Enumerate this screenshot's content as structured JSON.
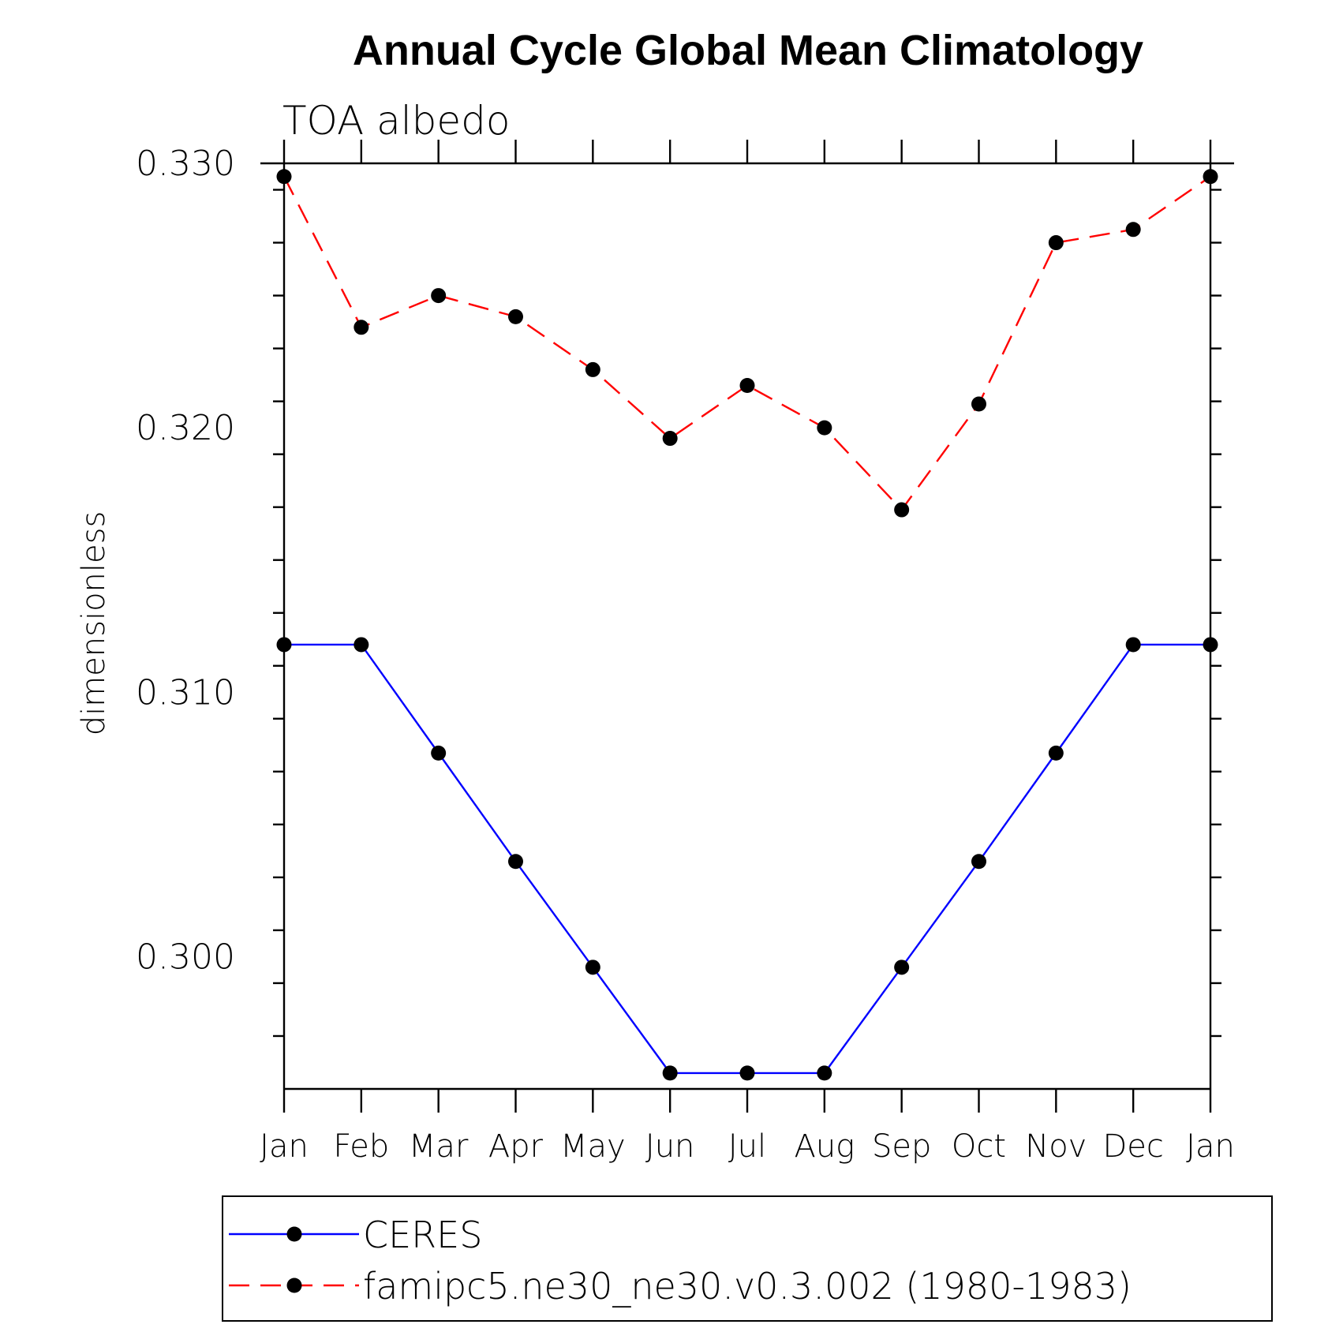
{
  "chart_data": {
    "type": "line",
    "title": "Annual Cycle Global Mean Climatology",
    "subtitle": "TOA albedo",
    "xlabel": "",
    "ylabel": "dimensionless",
    "categories": [
      "Jan",
      "Feb",
      "Mar",
      "Apr",
      "May",
      "Jun",
      "Jul",
      "Aug",
      "Sep",
      "Oct",
      "Nov",
      "Dec",
      "Jan"
    ],
    "ylim": [
      0.295,
      0.33
    ],
    "yticks": [
      "0.330",
      "0.320",
      "0.310",
      "0.300"
    ],
    "ytick_values": [
      0.33,
      0.32,
      0.31,
      0.3
    ],
    "grid": false,
    "legend_position": "bottom",
    "series": [
      {
        "name": "CERES",
        "color": "#0000ff",
        "line_style": "solid",
        "marker": "filled-circle",
        "values": [
          0.3118,
          0.3118,
          0.3077,
          0.3036,
          0.2996,
          0.2956,
          0.2956,
          0.2956,
          0.2996,
          0.3036,
          0.3077,
          0.3118,
          0.3118
        ]
      },
      {
        "name": "famipc5.ne30_ne30.v0.3.002 (1980-1983)",
        "color": "#ff0000",
        "line_style": "dashed",
        "marker": "filled-circle",
        "values": [
          0.3295,
          0.3238,
          0.325,
          0.3242,
          0.3222,
          0.3196,
          0.3216,
          0.32,
          0.3169,
          0.3209,
          0.327,
          0.3275,
          0.3295
        ]
      }
    ]
  }
}
